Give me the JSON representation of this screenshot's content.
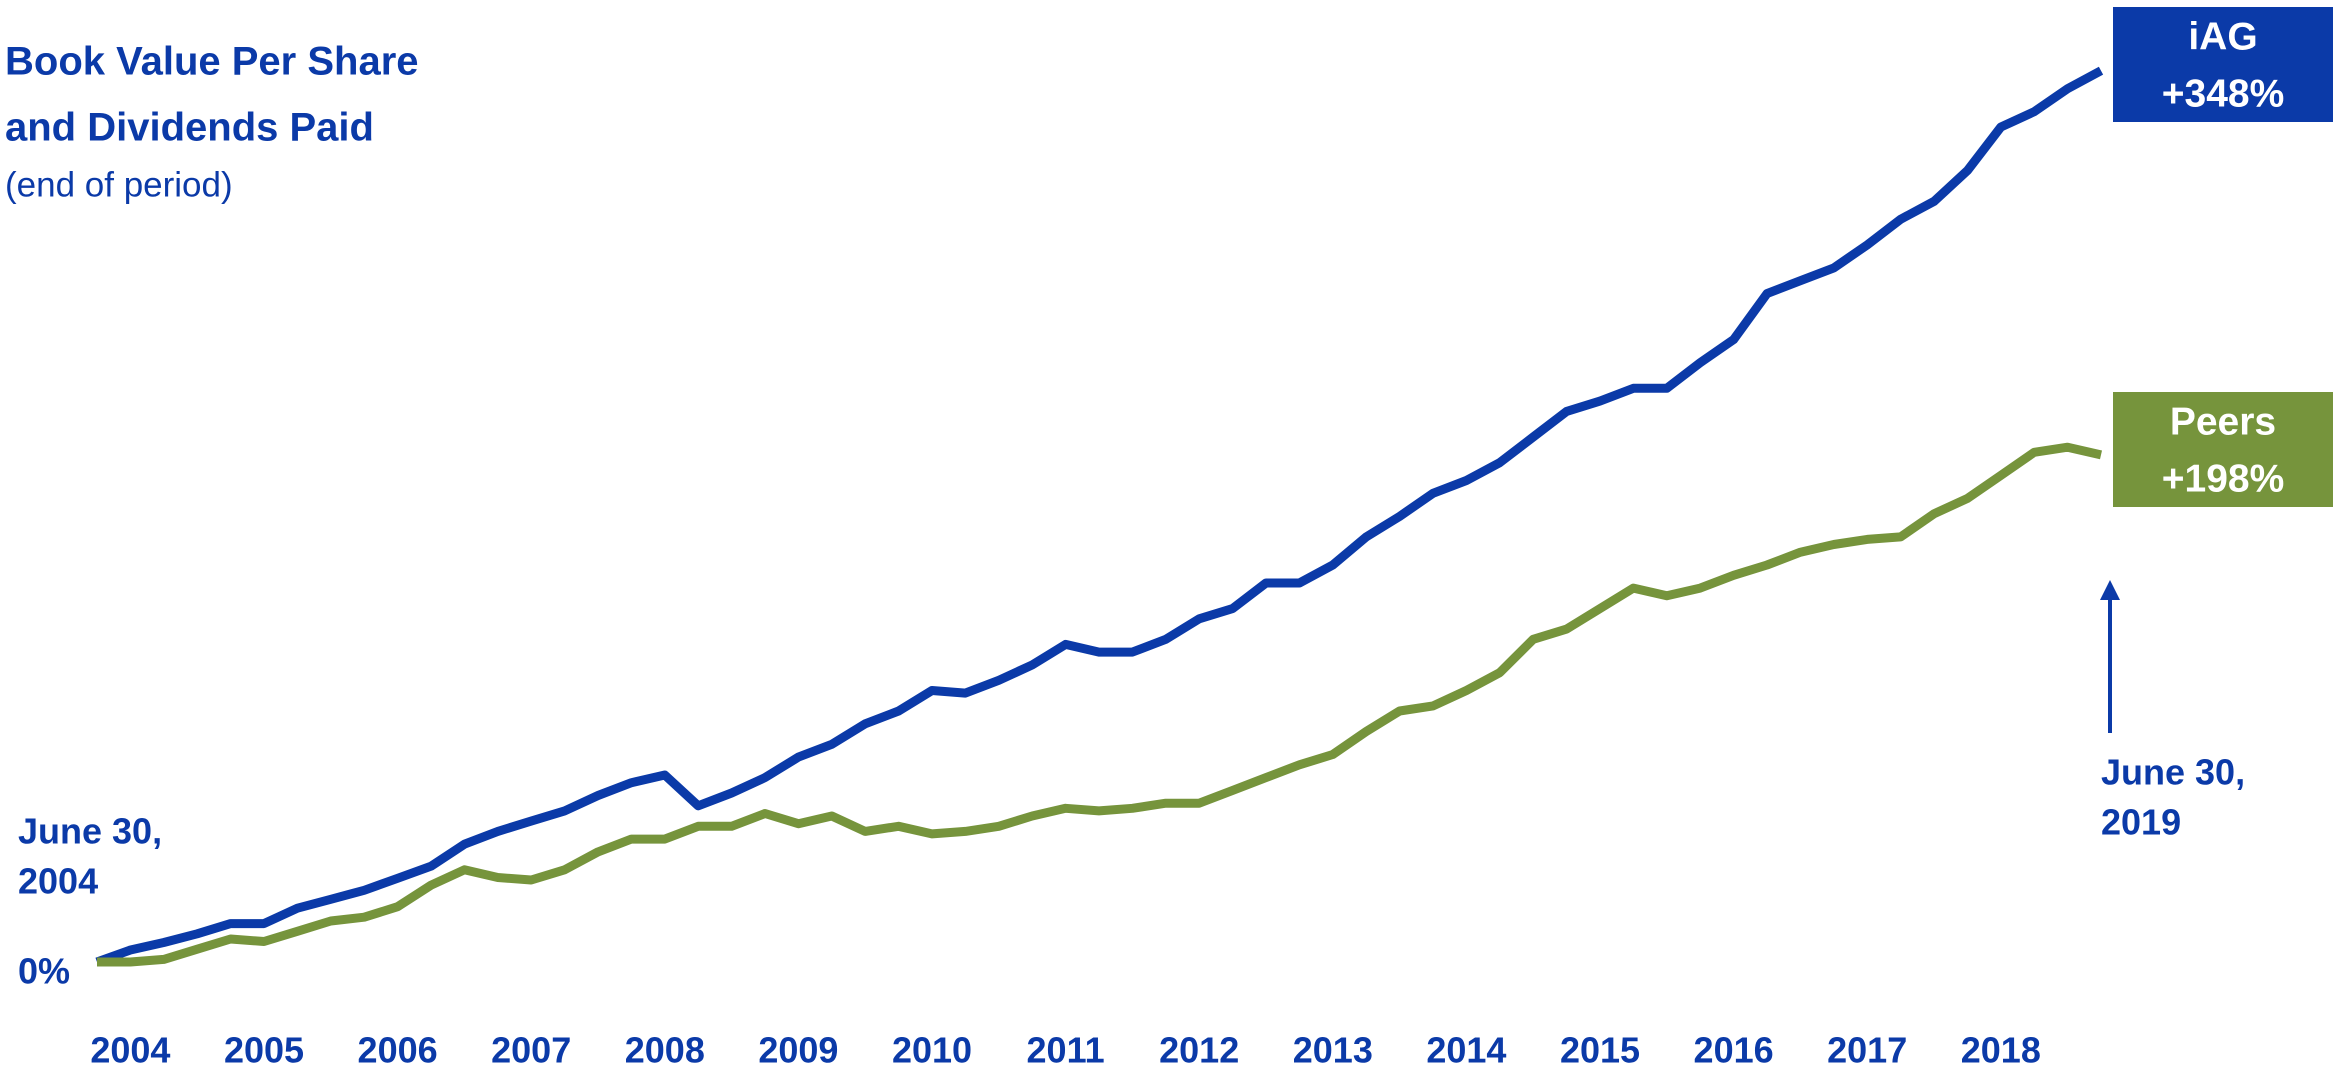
{
  "chart_data": {
    "type": "line",
    "title": [
      "Book Value Per Share",
      "and Dividends Paid"
    ],
    "subtitle": "(end of period)",
    "categories": [
      null,
      "2004",
      null,
      null,
      null,
      "2005",
      null,
      null,
      null,
      "2006",
      null,
      null,
      null,
      "2007",
      null,
      null,
      null,
      "2008",
      null,
      null,
      null,
      "2009",
      null,
      null,
      null,
      "2010",
      null,
      null,
      null,
      "2011",
      null,
      null,
      null,
      "2012",
      null,
      null,
      null,
      "2013",
      null,
      null,
      null,
      "2014",
      null,
      null,
      null,
      "2015",
      null,
      null,
      null,
      "2016",
      null,
      null,
      null,
      "2017",
      null,
      null,
      null,
      "2018",
      null,
      null,
      null
    ],
    "series": [
      {
        "name": "iAG",
        "color": "#0b3aa8",
        "end_label": "+348%",
        "values": [
          0,
          4.7,
          7.6,
          11,
          15,
          15,
          21,
          24.5,
          28,
          32.7,
          37.4,
          46,
          51,
          55,
          59,
          65,
          70,
          73,
          61,
          66,
          72,
          80,
          85,
          93,
          98,
          106,
          105,
          110,
          116,
          124,
          121,
          121,
          126,
          134,
          138,
          148,
          148,
          155,
          166,
          174,
          183,
          188,
          195,
          205,
          215,
          219,
          224,
          224,
          234,
          243,
          261,
          266,
          271,
          280,
          290,
          297,
          309,
          326,
          332,
          341,
          348
        ]
      },
      {
        "name": "Peers",
        "color": "#76943c",
        "end_label": "+198%",
        "values": [
          0,
          0,
          1,
          5,
          9,
          8,
          12,
          16,
          17.5,
          21.6,
          30,
          36,
          33,
          32,
          36,
          43,
          48,
          48,
          53,
          53,
          58,
          54,
          57,
          51,
          53,
          50,
          51,
          53,
          57,
          60,
          59,
          60,
          62,
          62,
          67,
          72,
          77,
          81,
          90,
          98,
          100,
          106,
          113,
          126,
          130,
          138,
          146,
          143,
          146,
          151,
          155,
          160,
          163,
          165,
          166,
          175,
          181,
          190,
          199,
          201,
          198
        ]
      }
    ],
    "annotations": [
      {
        "lines": [
          "June 30,",
          "2004"
        ]
      },
      {
        "lines": [
          "June 30,",
          "2019"
        ]
      }
    ],
    "ylim": [
      0,
      360
    ],
    "yticks": [
      {
        "value": 0,
        "label": "0%"
      }
    ],
    "grid": false
  }
}
